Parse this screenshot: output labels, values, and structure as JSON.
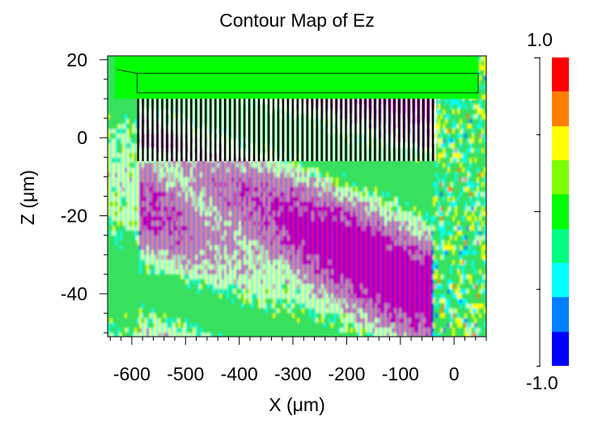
{
  "chart_data": {
    "type": "heatmap",
    "title": "Contour Map of Ez",
    "xlabel": "X (μm)",
    "ylabel": "Z (μm)",
    "x_ticks": [
      -600,
      -500,
      -400,
      -300,
      -200,
      -100,
      0
    ],
    "y_ticks": [
      20,
      0,
      -20,
      -40
    ],
    "xlim": [
      -645,
      60
    ],
    "ylim": [
      -51,
      21
    ],
    "colorbar": {
      "max_label": "1.0",
      "min_label": "-1.0",
      "range": [
        -1.0,
        1.0
      ],
      "colors": [
        "#ff0000",
        "#ff8000",
        "#ffff00",
        "#80ff00",
        "#00ff00",
        "#00ff80",
        "#00ffff",
        "#0080ff",
        "#0000ff"
      ]
    },
    "features": {
      "slab": {
        "x": [
          -590,
          45
        ],
        "z": [
          10,
          20
        ],
        "color": "#00ff00"
      },
      "grating_period_um": 9
    }
  }
}
